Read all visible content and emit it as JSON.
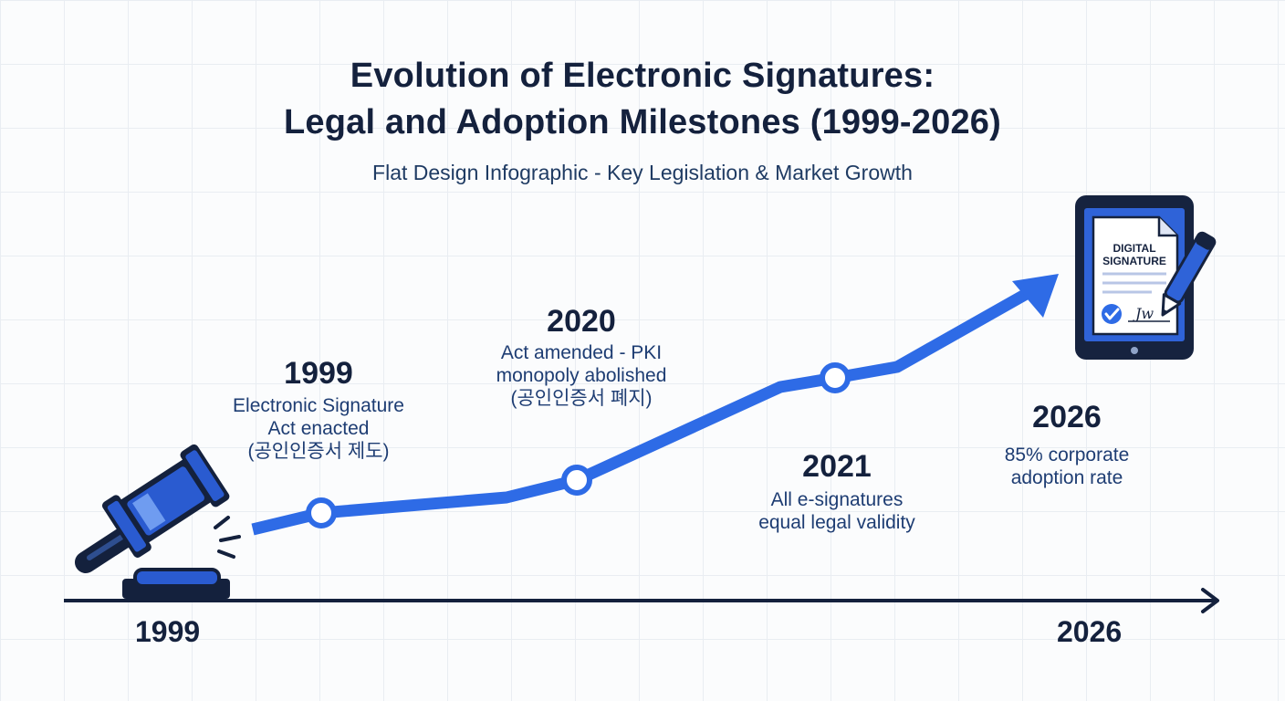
{
  "title": {
    "line1": "Evolution of Electronic Signatures:",
    "line2": "Legal and Adoption Milestones (1999-2026)"
  },
  "subtitle": "Flat Design Infographic - Key Legislation & Market Growth",
  "milestones": [
    {
      "year": "1999",
      "lines": [
        "Electronic Signature",
        "Act enacted",
        "(공인인증서 제도)"
      ]
    },
    {
      "year": "2020",
      "lines": [
        "Act amended - PKI",
        "monopoly abolished",
        "(공인인증서 폐지)"
      ]
    },
    {
      "year": "2021",
      "lines": [
        "All e-signatures",
        "equal legal validity"
      ]
    },
    {
      "year": "2026",
      "lines": [
        "85% corporate",
        "adoption rate"
      ]
    }
  ],
  "axis": {
    "start_label": "1999",
    "end_label": "2026"
  },
  "tablet": {
    "doc_line1": "DIGITAL",
    "doc_line2": "SIGNATURE",
    "signature_text": "Jw"
  },
  "icons": {
    "gavel": "gavel-icon",
    "tablet": "tablet-signature-icon",
    "pen": "pen-icon",
    "check": "checkmark-icon"
  },
  "colors": {
    "primary_blue": "#2e6be6",
    "navy": "#14213d",
    "text_blue": "#1e3d73",
    "tablet_frame": "#16233f",
    "tablet_screen": "#2f63d8"
  }
}
